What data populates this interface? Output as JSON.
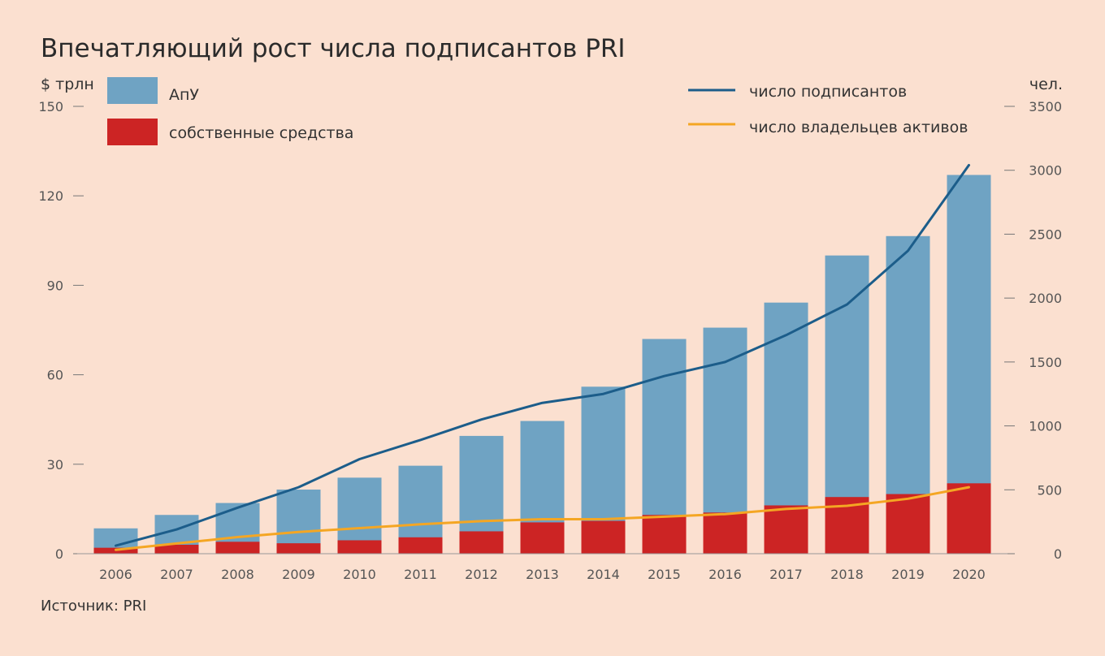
{
  "chart_data": {
    "type": "bar",
    "title": "Впечатляющий рост числа подписантов PRI",
    "source": "Источник: PRI",
    "categories": [
      "2006",
      "2007",
      "2008",
      "2009",
      "2010",
      "2011",
      "2012",
      "2013",
      "2014",
      "2015",
      "2016",
      "2017",
      "2018",
      "2019",
      "2020"
    ],
    "left_axis": {
      "unit": "$ трлн",
      "ylim": [
        0,
        150
      ],
      "ticks": [
        "0",
        "30",
        "60",
        "90",
        "120",
        "150"
      ]
    },
    "right_axis": {
      "unit": "чел.",
      "ylim": [
        0,
        3500
      ],
      "ticks": [
        "0",
        "500",
        "1000",
        "1500",
        "2000",
        "2500",
        "3000",
        "3500"
      ]
    },
    "bar_series": [
      {
        "name": "АпУ",
        "color": "#6fa3c3",
        "axis": "left",
        "values": [
          6.5,
          10,
          13,
          18,
          21,
          24,
          32,
          34,
          45,
          59,
          62,
          68,
          81,
          86.5,
          103.4
        ]
      },
      {
        "name": "собственные средства",
        "color": "#cc2424",
        "axis": "left",
        "values": [
          2,
          3,
          4,
          3.5,
          4.5,
          5.5,
          7.5,
          10.5,
          11,
          13,
          13.8,
          16.2,
          19,
          20,
          23.6
        ]
      }
    ],
    "line_series": [
      {
        "name": "число подписантов",
        "color": "#1c5d8a",
        "axis": "right",
        "values": [
          63,
          190,
          360,
          520,
          740,
          890,
          1050,
          1180,
          1250,
          1390,
          1500,
          1710,
          1950,
          2370,
          3040
        ]
      },
      {
        "name": "число владельцев активов",
        "color": "#f4a623",
        "axis": "right",
        "values": [
          30,
          80,
          130,
          170,
          200,
          230,
          255,
          270,
          270,
          290,
          310,
          350,
          375,
          430,
          520
        ]
      }
    ],
    "legend_position": "top",
    "grid": false
  }
}
